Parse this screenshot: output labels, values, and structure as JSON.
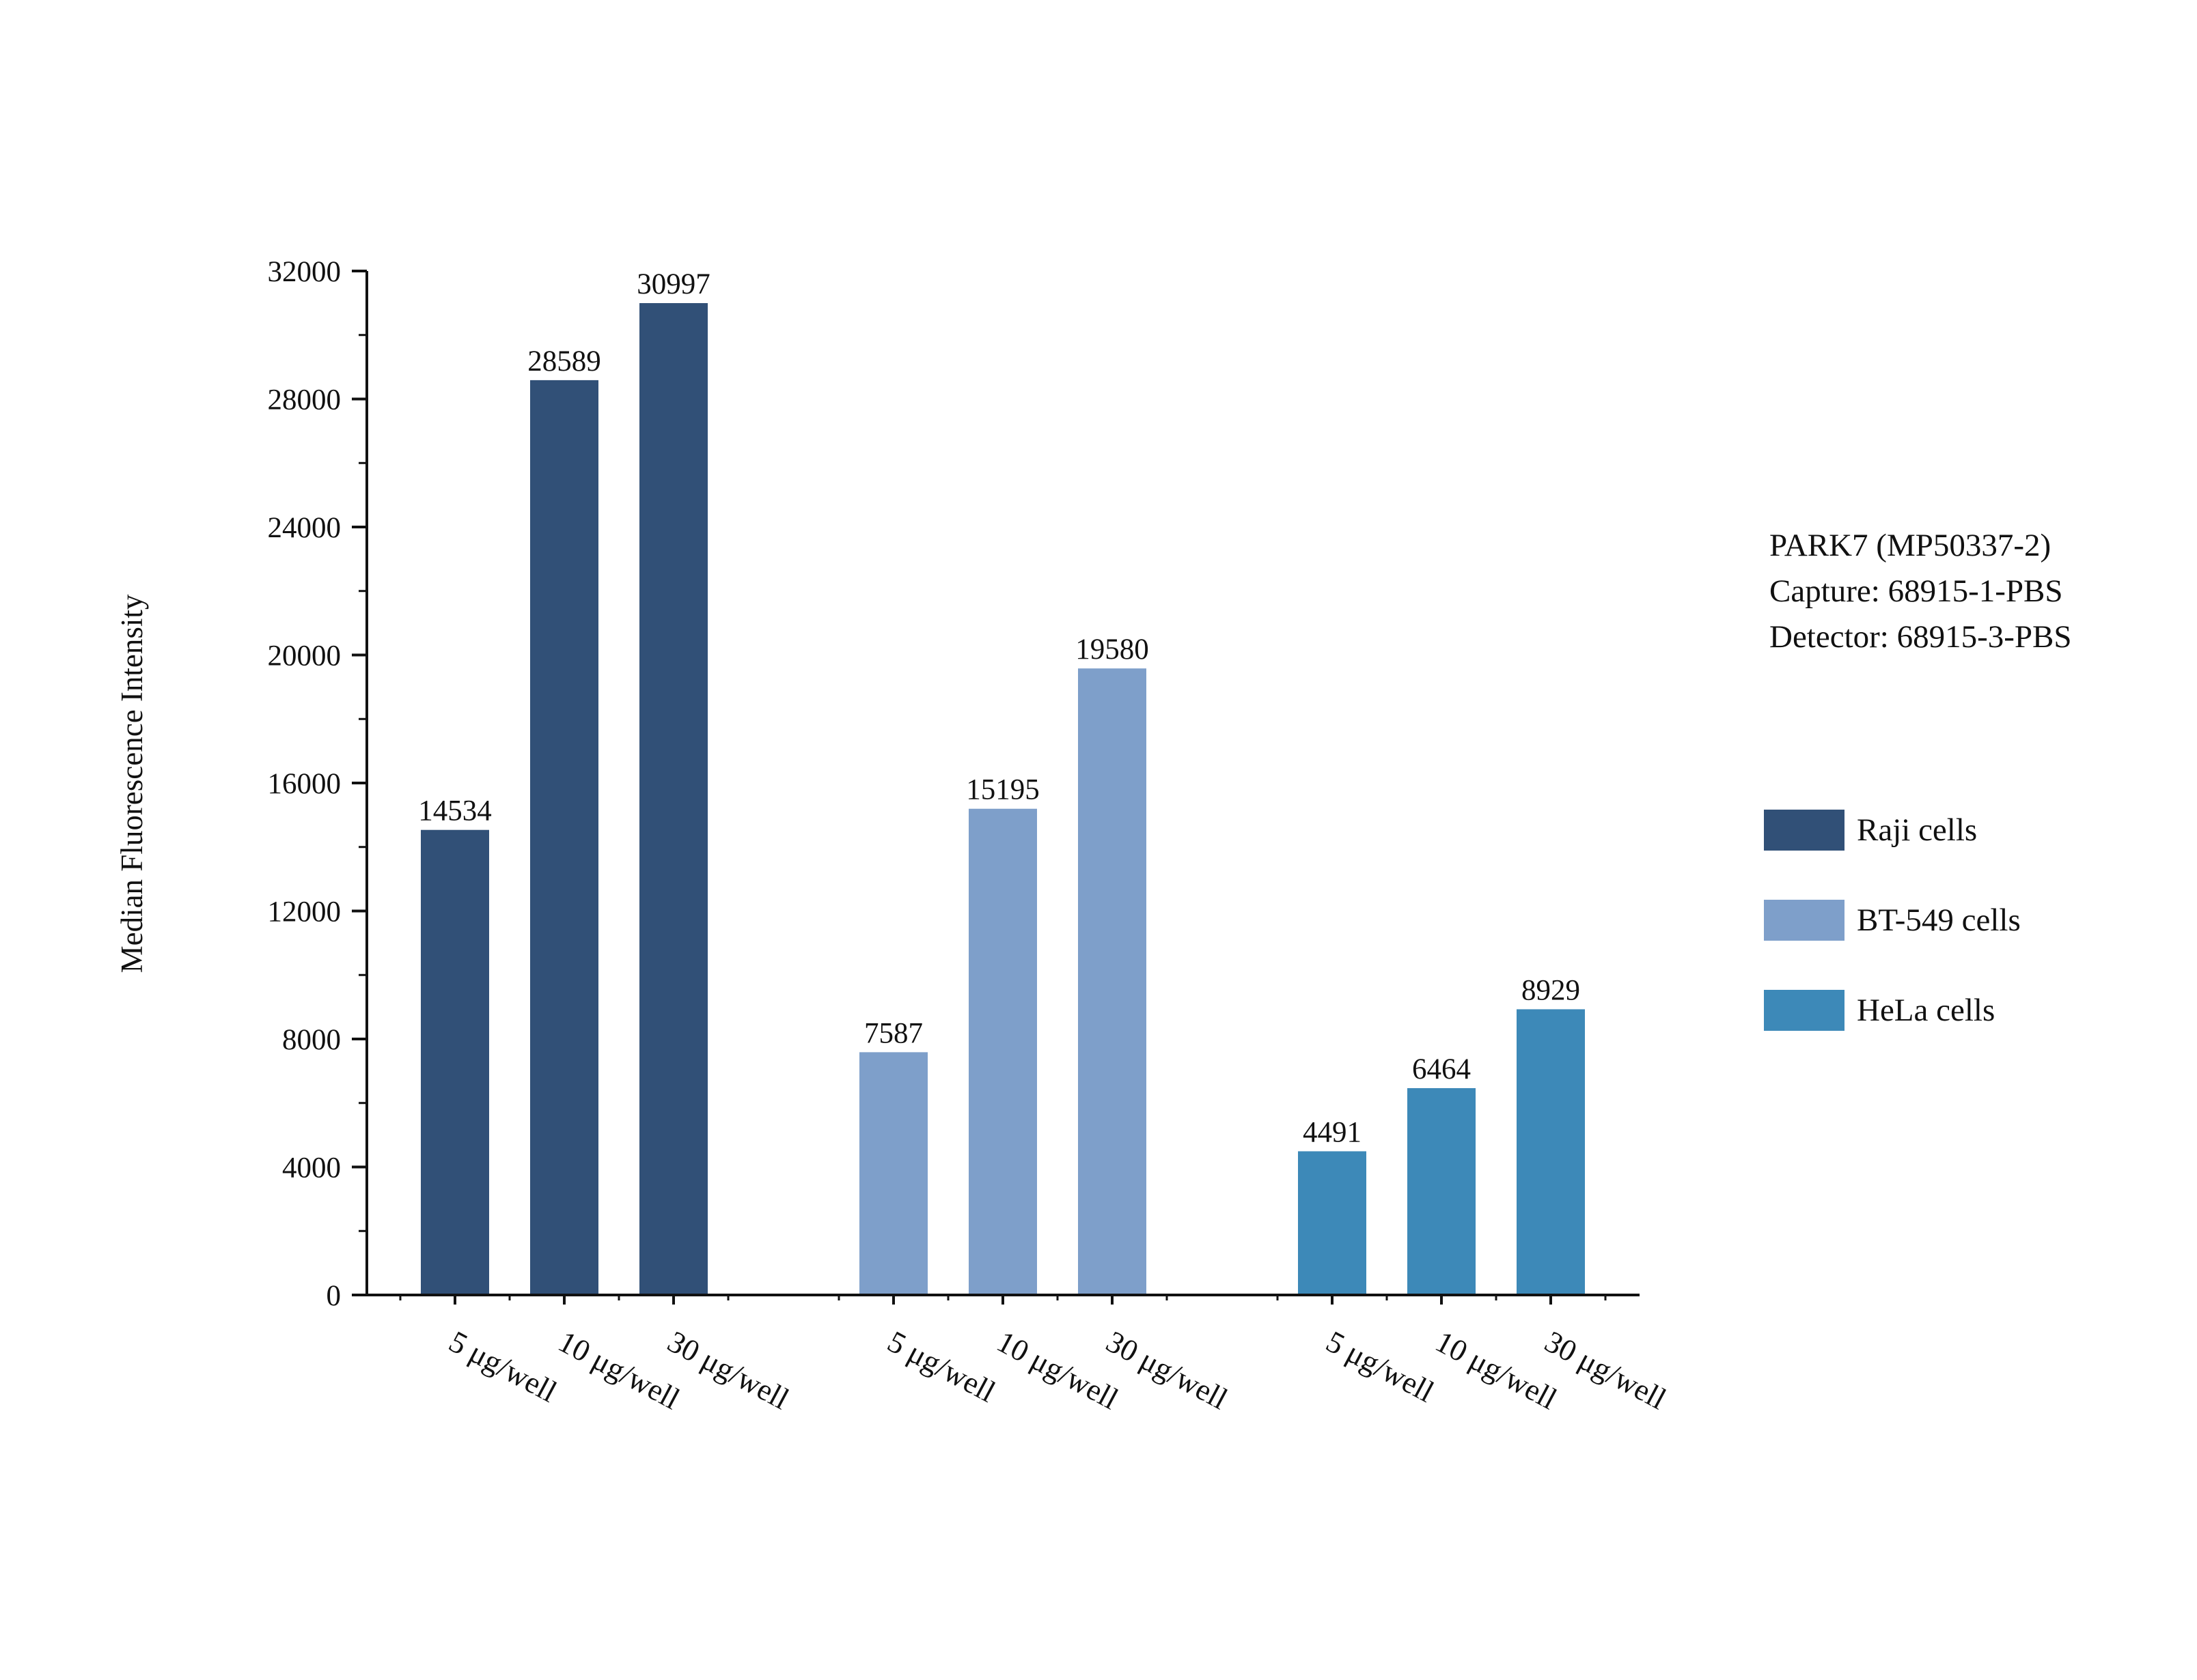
{
  "chart_data": {
    "type": "bar",
    "ylabel": "Median Fluorescence Intensity",
    "ylim": [
      0,
      32000
    ],
    "yticks": [
      0,
      4000,
      8000,
      12000,
      16000,
      20000,
      24000,
      28000,
      32000
    ],
    "yticks_minor_step": 2000,
    "grid": false,
    "legend_position": "right",
    "categories": [
      "5 μg/well",
      "10 μg/well",
      "30 μg/well"
    ],
    "series": [
      {
        "name": "Raji cells",
        "color": "#315077",
        "values": [
          14534,
          28589,
          30997
        ]
      },
      {
        "name": "BT-549 cells",
        "color": "#7e9fca",
        "values": [
          7587,
          15195,
          19580
        ]
      },
      {
        "name": "HeLa cells",
        "color": "#3d89b8",
        "values": [
          4491,
          6464,
          8929
        ]
      }
    ],
    "annotations": [
      "PARK7 (MP50337-2)",
      "Capture: 68915-1-PBS",
      "Detector: 68915-3-PBS"
    ]
  }
}
